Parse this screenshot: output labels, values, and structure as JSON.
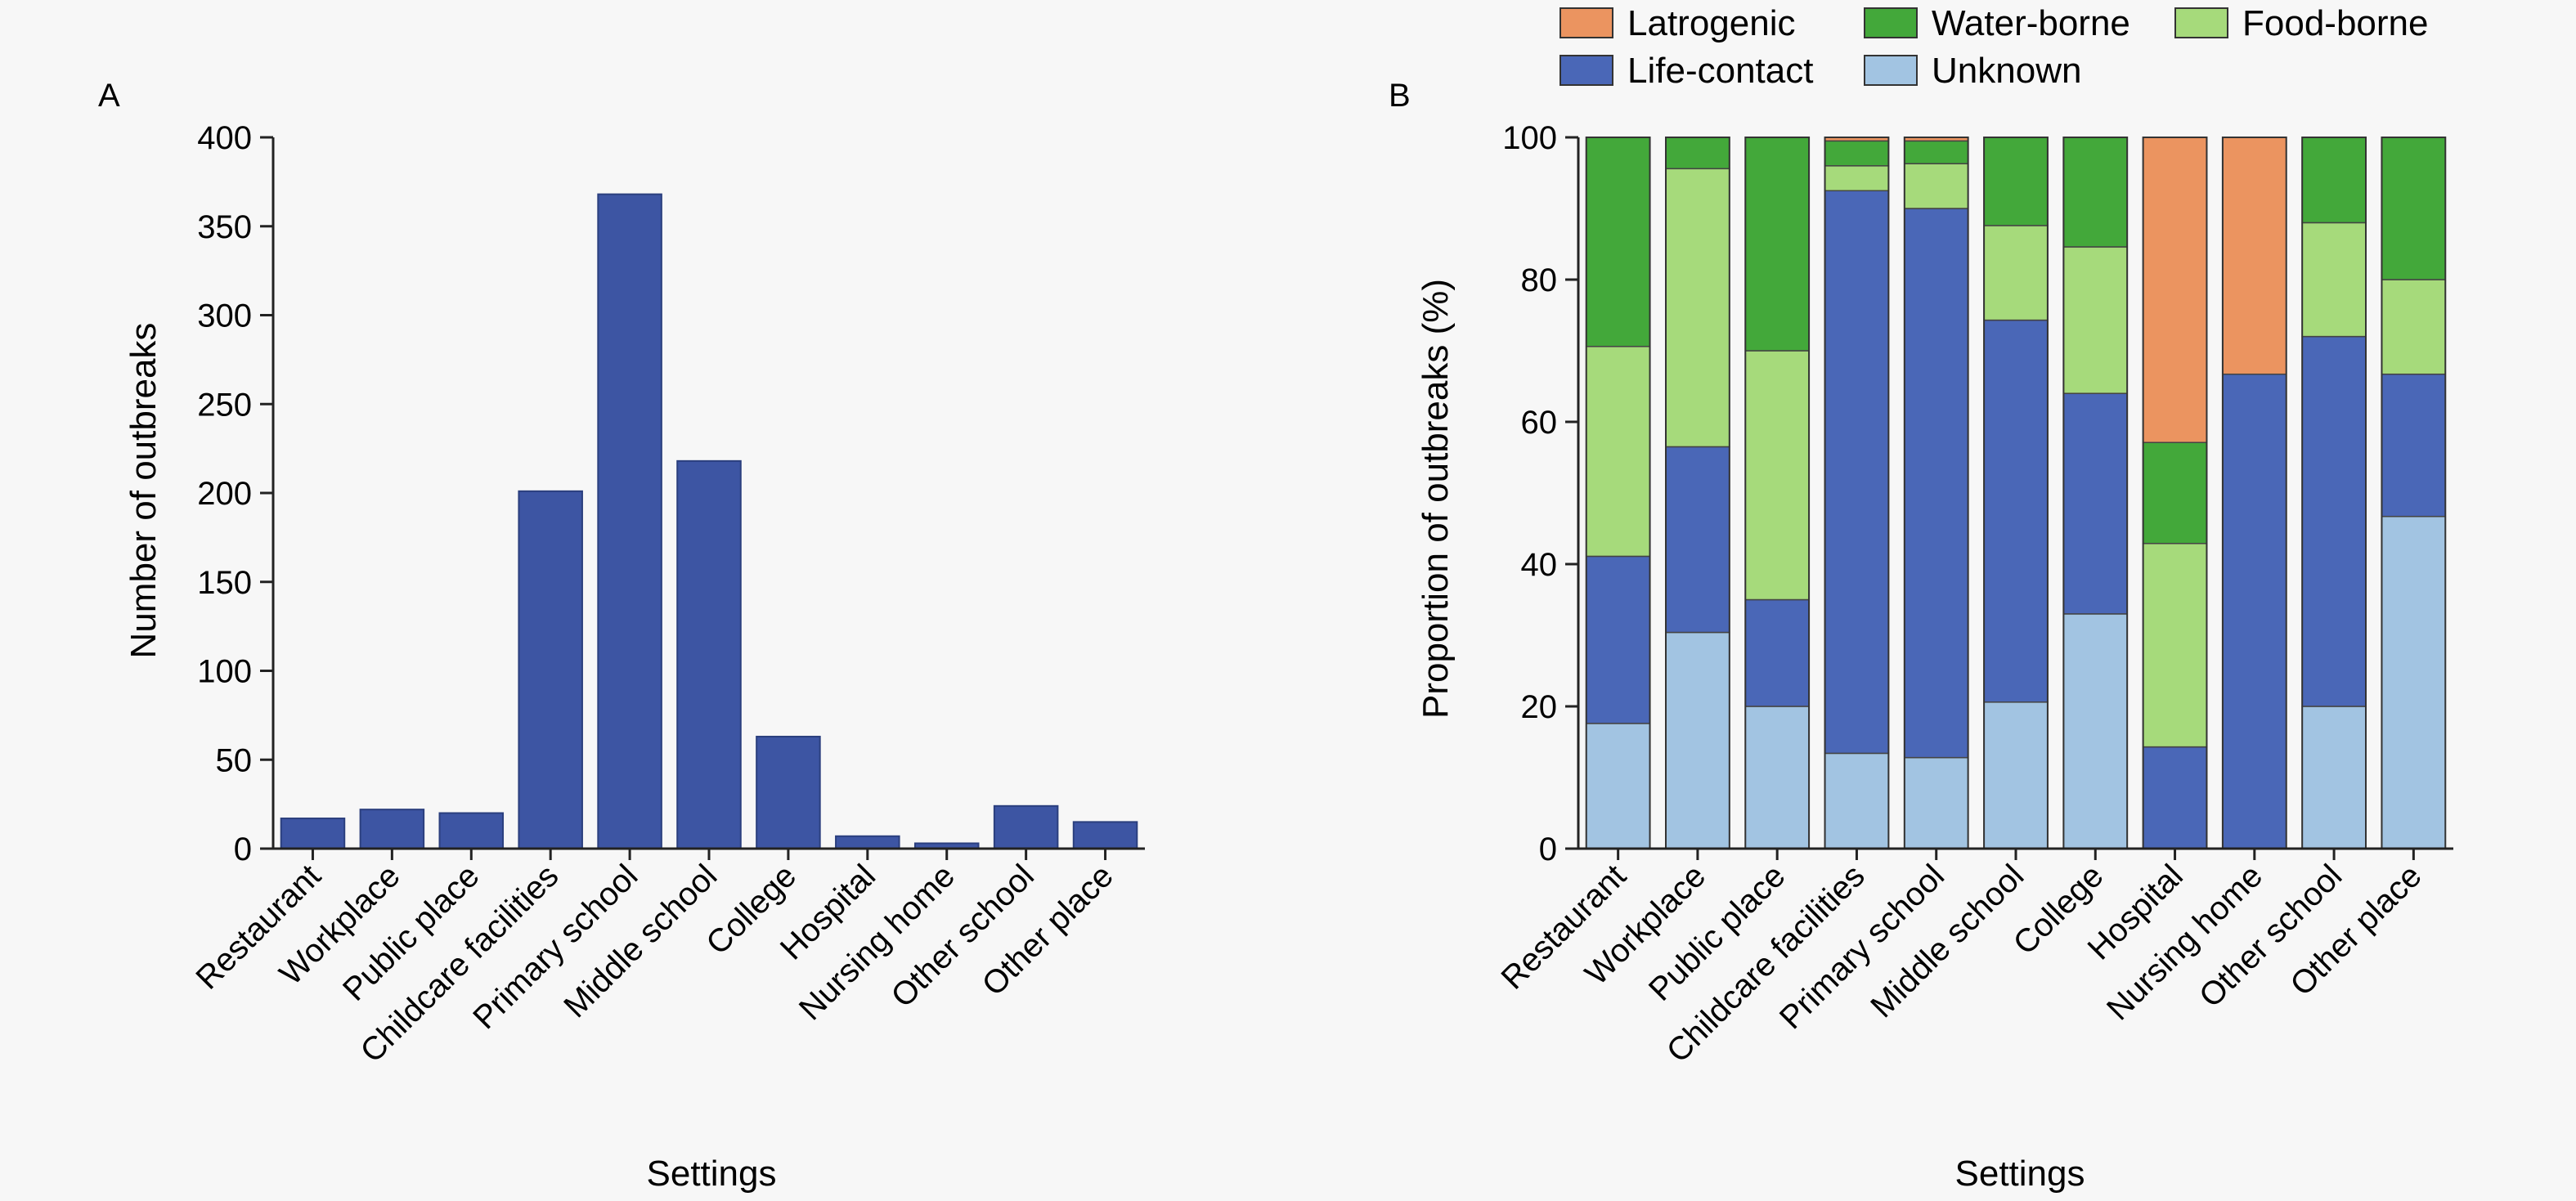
{
  "chart_data": [
    {
      "panel": "A",
      "type": "bar",
      "xlabel": "Settings",
      "ylabel": "Number of outbreaks",
      "ylim": [
        0,
        400
      ],
      "yticks": [
        0,
        50,
        100,
        150,
        200,
        250,
        300,
        350,
        400
      ],
      "categories": [
        "Restaurant",
        "Workplace",
        "Public place",
        "Childcare facilities",
        "Primary school",
        "Middle school",
        "College",
        "Hospital",
        "Nursing home",
        "Other school",
        "Other place"
      ],
      "values": [
        17,
        22,
        20,
        201,
        368,
        218,
        63,
        7,
        3,
        24,
        15
      ],
      "bar_color": "#3d55a3",
      "grid": false
    },
    {
      "panel": "B",
      "type": "bar",
      "stacked": true,
      "xlabel": "Settings",
      "ylabel": "Proportion of outbreaks (%)",
      "ylim": [
        0,
        100
      ],
      "yticks": [
        0,
        20,
        40,
        60,
        80,
        100
      ],
      "categories": [
        "Restaurant",
        "Workplace",
        "Public place",
        "Childcare facilities",
        "Primary school",
        "Middle school",
        "College",
        "Hospital",
        "Nursing home",
        "Other school",
        "Other place"
      ],
      "series": [
        {
          "name": "Unknown",
          "color": "#a2c4e2",
          "values": [
            17.6,
            30.4,
            20.0,
            13.4,
            12.8,
            20.6,
            33.0,
            0,
            0,
            20.0,
            46.7
          ]
        },
        {
          "name": "Life-contact",
          "color": "#4a67b7",
          "values": [
            23.5,
            26.1,
            15.0,
            79.1,
            77.2,
            53.7,
            31.0,
            14.3,
            66.7,
            52.0,
            20.0
          ]
        },
        {
          "name": "Food-borne",
          "color": "#a6da7b",
          "values": [
            29.5,
            39.1,
            35.0,
            3.5,
            6.3,
            13.3,
            20.6,
            28.6,
            0,
            16.0,
            13.3
          ]
        },
        {
          "name": "Water-borne",
          "color": "#43a83a",
          "values": [
            29.4,
            4.4,
            30.0,
            3.5,
            3.2,
            12.4,
            15.4,
            14.2,
            0,
            12.0,
            20.0
          ]
        },
        {
          "name": "Latrogenic",
          "color": "#eb9460",
          "values": [
            0,
            0,
            0,
            0.5,
            0.5,
            0,
            0,
            42.9,
            33.3,
            0,
            0
          ]
        }
      ],
      "legend": {
        "placement": "top",
        "order": [
          "Latrogenic",
          "Water-borne",
          "Food-borne",
          "Life-contact",
          "Unknown"
        ]
      },
      "grid": false
    }
  ]
}
